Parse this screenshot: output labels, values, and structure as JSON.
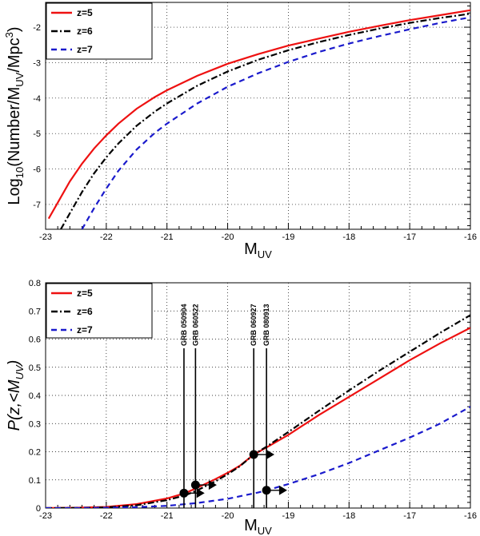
{
  "chart_data": [
    {
      "type": "line",
      "xlabel": "M",
      "xlabel_sub": "UV",
      "ylabel_parts": [
        "Log",
        "10",
        "(Number/M",
        "UV",
        "/Mpc",
        "3",
        ")"
      ],
      "xlim": [
        -23,
        -16
      ],
      "ylim": [
        -7.7,
        -1.3
      ],
      "xticks": [
        -23,
        -22,
        -21,
        -20,
        -19,
        -18,
        -17,
        -16
      ],
      "xtick_labels": [
        "-23",
        "-22",
        "-21",
        "-20",
        "-19",
        "-18",
        "-17",
        "-16"
      ],
      "yticks": [
        -7,
        -6,
        -5,
        -4,
        -3,
        -2
      ],
      "ytick_labels": [
        "-7",
        "-6",
        "-5",
        "-4",
        "-3",
        "-2"
      ],
      "grid": true,
      "legend_position": "top-left",
      "series": [
        {
          "name": "z=5",
          "color": "#ee1111",
          "dash": "solid",
          "x": [
            -22.95,
            -22.8,
            -22.6,
            -22.4,
            -22.2,
            -22.0,
            -21.8,
            -21.5,
            -21.2,
            -21.0,
            -20.5,
            -20.0,
            -19.5,
            -19.0,
            -18.5,
            -18.0,
            -17.5,
            -17.0,
            -16.5,
            -16.0
          ],
          "y": [
            -7.4,
            -6.95,
            -6.35,
            -5.85,
            -5.42,
            -5.05,
            -4.72,
            -4.3,
            -3.97,
            -3.78,
            -3.37,
            -3.03,
            -2.76,
            -2.52,
            -2.32,
            -2.13,
            -1.96,
            -1.8,
            -1.66,
            -1.52
          ]
        },
        {
          "name": "z=6",
          "color": "#000000",
          "dash": "dashdot",
          "x": [
            -22.75,
            -22.6,
            -22.4,
            -22.2,
            -22.0,
            -21.8,
            -21.5,
            -21.2,
            -21.0,
            -20.5,
            -20.0,
            -19.5,
            -19.0,
            -18.5,
            -18.0,
            -17.5,
            -17.0,
            -16.5,
            -16.0
          ],
          "y": [
            -7.7,
            -7.25,
            -6.65,
            -6.12,
            -5.67,
            -5.28,
            -4.78,
            -4.38,
            -4.15,
            -3.65,
            -3.25,
            -2.92,
            -2.65,
            -2.42,
            -2.22,
            -2.04,
            -1.88,
            -1.74,
            -1.62
          ]
        },
        {
          "name": "z=7",
          "color": "#1a1acc",
          "dash": "dashed",
          "x": [
            -22.4,
            -22.2,
            -22.0,
            -21.8,
            -21.5,
            -21.2,
            -21.0,
            -20.5,
            -20.0,
            -19.5,
            -19.0,
            -18.5,
            -18.0,
            -17.5,
            -17.0,
            -16.5,
            -16.0
          ],
          "y": [
            -7.7,
            -7.1,
            -6.55,
            -6.05,
            -5.45,
            -4.98,
            -4.72,
            -4.15,
            -3.68,
            -3.3,
            -2.98,
            -2.7,
            -2.46,
            -2.25,
            -2.06,
            -1.88,
            -1.72
          ]
        }
      ]
    },
    {
      "type": "line",
      "xlabel": "M",
      "xlabel_sub": "UV",
      "ylabel_parts": [
        "P(z,<M",
        "UV",
        ")"
      ],
      "xlim": [
        -23,
        -16
      ],
      "ylim": [
        0,
        0.8
      ],
      "xticks": [
        -23,
        -22,
        -21,
        -20,
        -19,
        -18,
        -17,
        -16
      ],
      "xtick_labels": [
        "-23",
        "-22",
        "-21",
        "-20",
        "-19",
        "-18",
        "-17",
        "-16"
      ],
      "yticks": [
        0,
        0.1,
        0.2,
        0.3,
        0.4,
        0.5,
        0.6,
        0.7,
        0.8
      ],
      "ytick_labels": [
        "0",
        "0.1",
        "0.2",
        "0.3",
        "0.4",
        "0.5",
        "0.6",
        "0.7",
        "0.8"
      ],
      "grid": true,
      "legend_position": "top-left",
      "series": [
        {
          "name": "z=5",
          "color": "#ee1111",
          "dash": "solid",
          "x": [
            -23.0,
            -22.5,
            -22.0,
            -21.5,
            -21.0,
            -20.7,
            -20.5,
            -20.2,
            -20.0,
            -19.8,
            -19.57,
            -19.36,
            -19.0,
            -18.5,
            -18.0,
            -17.5,
            -17.0,
            -16.5,
            -16.0
          ],
          "y": [
            0.0,
            0.001,
            0.004,
            0.014,
            0.034,
            0.053,
            0.072,
            0.103,
            0.125,
            0.15,
            0.19,
            0.215,
            0.26,
            0.33,
            0.395,
            0.46,
            0.525,
            0.585,
            0.64
          ]
        },
        {
          "name": "z=6",
          "color": "#000000",
          "dash": "dashdot",
          "x": [
            -23.0,
            -22.5,
            -22.0,
            -21.5,
            -21.0,
            -20.7,
            -20.5,
            -20.2,
            -20.0,
            -19.8,
            -19.57,
            -19.36,
            -19.0,
            -18.5,
            -18.0,
            -17.5,
            -17.0,
            -16.5,
            -16.0
          ],
          "y": [
            0.0,
            0.0005,
            0.002,
            0.01,
            0.028,
            0.045,
            0.063,
            0.095,
            0.12,
            0.148,
            0.19,
            0.218,
            0.27,
            0.345,
            0.418,
            0.488,
            0.555,
            0.622,
            0.685
          ]
        },
        {
          "name": "z=7",
          "color": "#1a1acc",
          "dash": "dashed",
          "x": [
            -23.0,
            -22.5,
            -22.0,
            -21.5,
            -21.0,
            -20.5,
            -20.0,
            -19.5,
            -19.36,
            -19.0,
            -18.5,
            -18.0,
            -17.5,
            -17.0,
            -16.5,
            -16.0
          ],
          "y": [
            0.0,
            0.0,
            0.001,
            0.003,
            0.008,
            0.018,
            0.033,
            0.055,
            0.063,
            0.085,
            0.12,
            0.16,
            0.205,
            0.25,
            0.3,
            0.36
          ]
        }
      ],
      "annotations": [
        {
          "label": "GRB 050904",
          "x": -20.72,
          "y": 0.053,
          "arrow_to": -20.38,
          "color": "#000000"
        },
        {
          "label": "GRB 060522",
          "x": -20.53,
          "y": 0.082,
          "arrow_to": -20.18,
          "color": "#000000"
        },
        {
          "label": "GRB 060927",
          "x": -19.57,
          "y": 0.19,
          "arrow_to": -19.23,
          "color": "#000000"
        },
        {
          "label": "GRB 080913",
          "x": -19.36,
          "y": 0.063,
          "arrow_to": -19.02,
          "color": "#000000"
        }
      ]
    }
  ]
}
